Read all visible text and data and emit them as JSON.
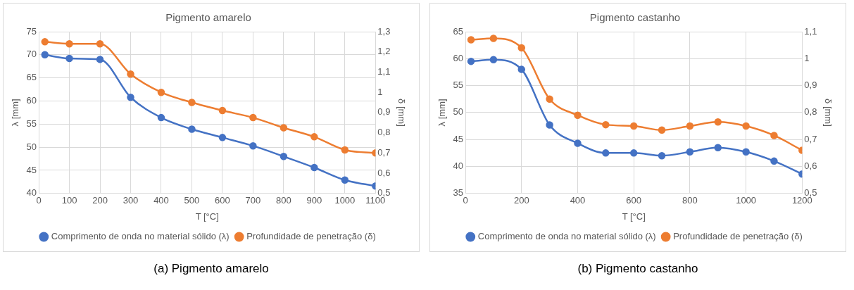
{
  "chart_data": [
    {
      "type": "line",
      "title": "Pigmento amarelo",
      "xlabel": "T [°C]",
      "ylabel": "λ [mm]",
      "y2label": "δ [mm]",
      "x": [
        20,
        100,
        200,
        300,
        400,
        500,
        600,
        700,
        800,
        900,
        1000,
        1100
      ],
      "series": [
        {
          "name": "Comprimento de onda no material sólido (λ)",
          "color": "#4472c4",
          "values": [
            70,
            69.2,
            69,
            60.8,
            56.4,
            53.9,
            52.1,
            50.3,
            48,
            45.6,
            42.9,
            41.6
          ]
        },
        {
          "name": "Profundidade de penetração (δ)",
          "color": "#ed7d31",
          "axis": "y2",
          "values": [
            1.25,
            1.24,
            1.24,
            1.09,
            1.0,
            0.95,
            0.91,
            0.875,
            0.825,
            0.78,
            0.715,
            0.7
          ]
        }
      ],
      "xlim": [
        0,
        1100
      ],
      "xticks": [
        0,
        100,
        200,
        300,
        400,
        500,
        600,
        700,
        800,
        900,
        1000,
        1100
      ],
      "ylim": [
        40,
        75
      ],
      "yticks": [
        40,
        45,
        50,
        55,
        60,
        65,
        70,
        75
      ],
      "y2lim": [
        0.5,
        1.3
      ],
      "y2ticks": [
        {
          "value": 0.5,
          "label": "0,5"
        },
        {
          "value": 0.6,
          "label": "0,6"
        },
        {
          "value": 0.7,
          "label": "0,7"
        },
        {
          "value": 0.8,
          "label": "0,8"
        },
        {
          "value": 0.9,
          "label": "0,9"
        },
        {
          "value": 1,
          "label": "1"
        },
        {
          "value": 1.1,
          "label": "1,1"
        },
        {
          "value": 1.2,
          "label": "1,2"
        },
        {
          "value": 1.3,
          "label": "1,3"
        }
      ],
      "grid": true,
      "legend": "bottom",
      "marker": "circle",
      "line_style": "solid",
      "annotations": [
        "(a)  Pigmento amarelo"
      ]
    },
    {
      "type": "line",
      "title": "Pigmento castanho",
      "xlabel": "T [°C]",
      "ylabel": "λ [mm]",
      "y2label": "δ [mm]",
      "x": [
        20,
        100,
        200,
        300,
        400,
        500,
        600,
        700,
        800,
        900,
        1000,
        1100,
        1200
      ],
      "series": [
        {
          "name": "Comprimento de onda no material sólido (λ)",
          "color": "#4472c4",
          "values": [
            59.5,
            59.8,
            58,
            47.7,
            44.3,
            42.5,
            42.5,
            42,
            42.7,
            43.5,
            42.7,
            41,
            38.6
          ]
        },
        {
          "name": "Profundidade de penetração (δ)",
          "color": "#ed7d31",
          "axis": "y2",
          "values": [
            1.07,
            1.075,
            1.04,
            0.85,
            0.79,
            0.755,
            0.75,
            0.735,
            0.75,
            0.765,
            0.75,
            0.715,
            0.66
          ]
        }
      ],
      "xlim": [
        0,
        1200
      ],
      "xticks": [
        0,
        200,
        400,
        600,
        800,
        1000,
        1200
      ],
      "ylim": [
        35,
        65
      ],
      "yticks": [
        35,
        40,
        45,
        50,
        55,
        60,
        65
      ],
      "y2lim": [
        0.5,
        1.1
      ],
      "y2ticks": [
        {
          "value": 0.5,
          "label": "0,5"
        },
        {
          "value": 0.6,
          "label": "0,6"
        },
        {
          "value": 0.7,
          "label": "0,7"
        },
        {
          "value": 0.8,
          "label": "0,8"
        },
        {
          "value": 0.9,
          "label": "0,9"
        },
        {
          "value": 1,
          "label": "1"
        },
        {
          "value": 1.1,
          "label": "1,1"
        }
      ],
      "grid": true,
      "legend": "bottom",
      "marker": "circle",
      "line_style": "solid",
      "annotations": [
        "(b)  Pigmento castanho"
      ]
    }
  ]
}
